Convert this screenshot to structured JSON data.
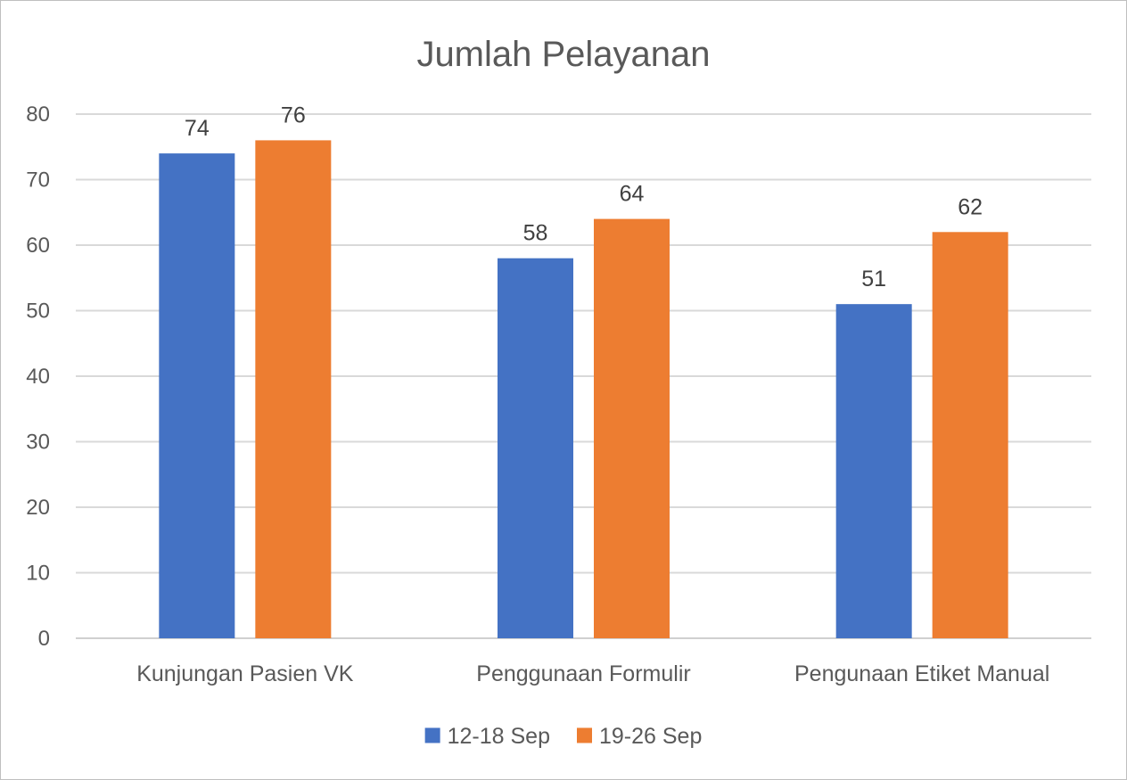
{
  "chart_data": {
    "type": "bar",
    "title": "Jumlah Pelayanan",
    "categories": [
      "Kunjungan Pasien VK",
      "Penggunaan Formulir",
      "Pengunaan Etiket Manual"
    ],
    "series": [
      {
        "name": "12-18 Sep",
        "values": [
          74,
          58,
          51
        ],
        "color": "#4472C4"
      },
      {
        "name": "19-26 Sep",
        "values": [
          76,
          64,
          62
        ],
        "color": "#ED7D31"
      }
    ],
    "ylim": [
      0,
      80
    ],
    "yticks": [
      0,
      10,
      20,
      30,
      40,
      50,
      60,
      70,
      80
    ],
    "grid": true,
    "legend": "bottom",
    "data_labels": true
  }
}
